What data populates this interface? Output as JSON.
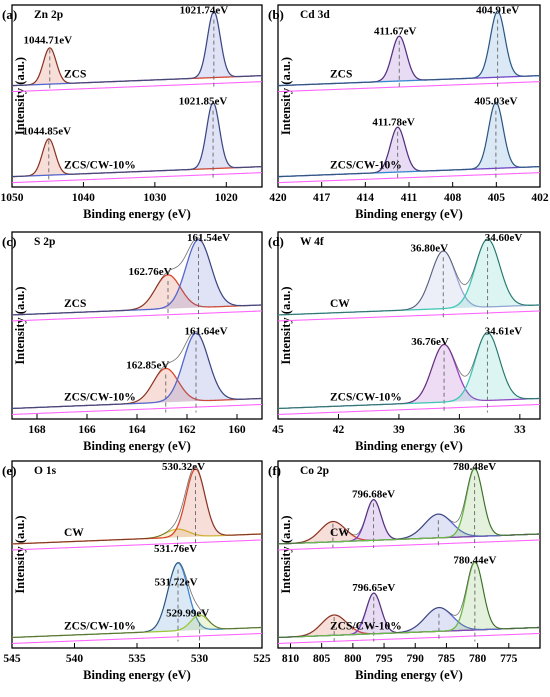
{
  "chart_data": [
    {
      "panel": "(a)",
      "type": "line",
      "title": "Zn 2p",
      "xlabel": "Binding energy (eV)",
      "ylabel": "Intensity (a.u.)",
      "xlim": [
        1050,
        1015
      ],
      "x_ticks": [
        1050,
        1040,
        1030,
        1020
      ],
      "grid": false,
      "legend": "none",
      "samples": [
        {
          "name": "ZCS",
          "peaks": [
            {
              "label": "1044.71eV",
              "position": 1044.71,
              "width": 0.9,
              "height": 0.55,
              "color": "#d9482b"
            },
            {
              "label": "1021.74eV",
              "position": 1021.74,
              "width": 0.9,
              "height": 1.0,
              "color": "#5566cc"
            }
          ]
        },
        {
          "name": "ZCS/CW-10%",
          "peaks": [
            {
              "label": "1044.85eV",
              "position": 1044.85,
              "width": 0.9,
              "height": 0.55,
              "color": "#d9482b"
            },
            {
              "label": "1021.85eV",
              "position": 1021.85,
              "width": 0.9,
              "height": 1.0,
              "color": "#5566cc"
            }
          ]
        }
      ]
    },
    {
      "panel": "(b)",
      "type": "line",
      "title": "Cd 3d",
      "xlabel": "Binding energy (eV)",
      "ylabel": "Intensity (a.u.)",
      "xlim": [
        420,
        402
      ],
      "x_ticks": [
        420,
        417,
        414,
        411,
        408,
        405,
        402
      ],
      "grid": false,
      "legend": "none",
      "samples": [
        {
          "name": "ZCS",
          "peaks": [
            {
              "label": "411.67eV",
              "position": 411.67,
              "width": 0.5,
              "height": 0.68,
              "color": "#7a3fc4"
            },
            {
              "label": "404.91eV",
              "position": 404.91,
              "width": 0.5,
              "height": 1.0,
              "color": "#3a86d0"
            }
          ]
        },
        {
          "name": "ZCS/CW-10%",
          "peaks": [
            {
              "label": "411.78eV",
              "position": 411.78,
              "width": 0.5,
              "height": 0.68,
              "color": "#7a3fc4"
            },
            {
              "label": "405.03eV",
              "position": 405.03,
              "width": 0.5,
              "height": 1.0,
              "color": "#3a86d0"
            }
          ]
        }
      ]
    },
    {
      "panel": "(c)",
      "type": "line",
      "title": "S 2p",
      "xlabel": "Binding energy (eV)",
      "ylabel": "Intensity (a.u.)",
      "xlim": [
        169,
        159
      ],
      "x_ticks": [
        168,
        166,
        164,
        162,
        160
      ],
      "grid": false,
      "legend": "none",
      "samples": [
        {
          "name": "ZCS",
          "peaks": [
            {
              "label": "162.76eV",
              "position": 162.76,
              "width": 0.5,
              "height": 0.5,
              "color": "#d9482b"
            },
            {
              "label": "161.54eV",
              "position": 161.54,
              "width": 0.5,
              "height": 1.0,
              "color": "#5566cc"
            }
          ]
        },
        {
          "name": "ZCS/CW-10%",
          "peaks": [
            {
              "label": "162.85eV",
              "position": 162.85,
              "width": 0.5,
              "height": 0.5,
              "color": "#d9482b"
            },
            {
              "label": "161.64eV",
              "position": 161.64,
              "width": 0.5,
              "height": 1.0,
              "color": "#5566cc"
            }
          ]
        }
      ]
    },
    {
      "panel": "(d)",
      "type": "line",
      "title": "W 4f",
      "xlabel": "Binding energy (eV)",
      "ylabel": "Intensity (a.u.)",
      "xlim": [
        45,
        32
      ],
      "x_ticks": [
        45,
        42,
        39,
        36,
        33
      ],
      "grid": false,
      "legend": "none",
      "samples": [
        {
          "name": "CW",
          "peaks": [
            {
              "label": "36.80eV",
              "position": 36.8,
              "width": 0.6,
              "height": 0.85,
              "color": "#9aa4d6"
            },
            {
              "label": "34.60eV",
              "position": 34.6,
              "width": 0.6,
              "height": 1.0,
              "color": "#40c6b6"
            }
          ]
        },
        {
          "name": "ZCS/CW-10%",
          "peaks": [
            {
              "label": "36.76eV",
              "position": 36.76,
              "width": 0.6,
              "height": 0.85,
              "color": "#9a3fc4"
            },
            {
              "label": "34.61eV",
              "position": 34.61,
              "width": 0.6,
              "height": 1.0,
              "color": "#40c6b6"
            }
          ]
        }
      ]
    },
    {
      "panel": "(e)",
      "type": "line",
      "title": "O 1s",
      "xlabel": "Binding energy (eV)",
      "ylabel": "Intensity (a.u.)",
      "xlim": [
        545,
        525
      ],
      "x_ticks": [
        545,
        540,
        535,
        530,
        525
      ],
      "grid": false,
      "legend": "none",
      "samples": [
        {
          "name": "CW",
          "peaks": [
            {
              "label": "531.76eV",
              "position": 531.76,
              "width": 0.9,
              "height": 0.12,
              "color": "#d0c43a"
            },
            {
              "label": "530.32eV",
              "position": 530.32,
              "width": 0.75,
              "height": 1.0,
              "color": "#d9482b"
            }
          ]
        },
        {
          "name": "ZCS/CW-10%",
          "peaks": [
            {
              "label": "531.72eV",
              "position": 531.72,
              "width": 0.8,
              "height": 1.0,
              "color": "#3a86d0"
            },
            {
              "label": "529.99eV",
              "position": 529.99,
              "width": 0.7,
              "height": 0.22,
              "color": "#9cc63a"
            }
          ]
        }
      ]
    },
    {
      "panel": "(f)",
      "type": "line",
      "title": "Co 2p",
      "xlabel": "Binding energy (eV)",
      "ylabel": "Intensity (a.u.)",
      "xlim": [
        812,
        770
      ],
      "x_ticks": [
        810,
        805,
        800,
        795,
        790,
        785,
        780,
        775
      ],
      "grid": false,
      "legend": "none",
      "samples": [
        {
          "name": "CW",
          "peaks": [
            {
              "label": "",
              "position": 803.2,
              "width": 2.0,
              "height": 0.3,
              "color": "#d9482b"
            },
            {
              "label": "796.68eV",
              "position": 796.68,
              "width": 1.2,
              "height": 0.6,
              "color": "#7a3fc4"
            },
            {
              "label": "",
              "position": 786.3,
              "width": 2.2,
              "height": 0.35,
              "color": "#5566cc"
            },
            {
              "label": "780.48eV",
              "position": 780.48,
              "width": 1.3,
              "height": 1.0,
              "color": "#6ab845"
            }
          ]
        },
        {
          "name": "ZCS/CW-10%",
          "peaks": [
            {
              "label": "",
              "position": 803.0,
              "width": 2.0,
              "height": 0.3,
              "color": "#d9482b"
            },
            {
              "label": "796.65eV",
              "position": 796.65,
              "width": 1.2,
              "height": 0.6,
              "color": "#7a3fc4"
            },
            {
              "label": "",
              "position": 786.2,
              "width": 2.2,
              "height": 0.35,
              "color": "#5566cc"
            },
            {
              "label": "780.44eV",
              "position": 780.44,
              "width": 1.3,
              "height": 1.0,
              "color": "#6ab845"
            }
          ]
        }
      ]
    }
  ],
  "colors": {
    "envelope": "#333333",
    "background": "#ff66ff",
    "raw": "#d8c8ee"
  }
}
